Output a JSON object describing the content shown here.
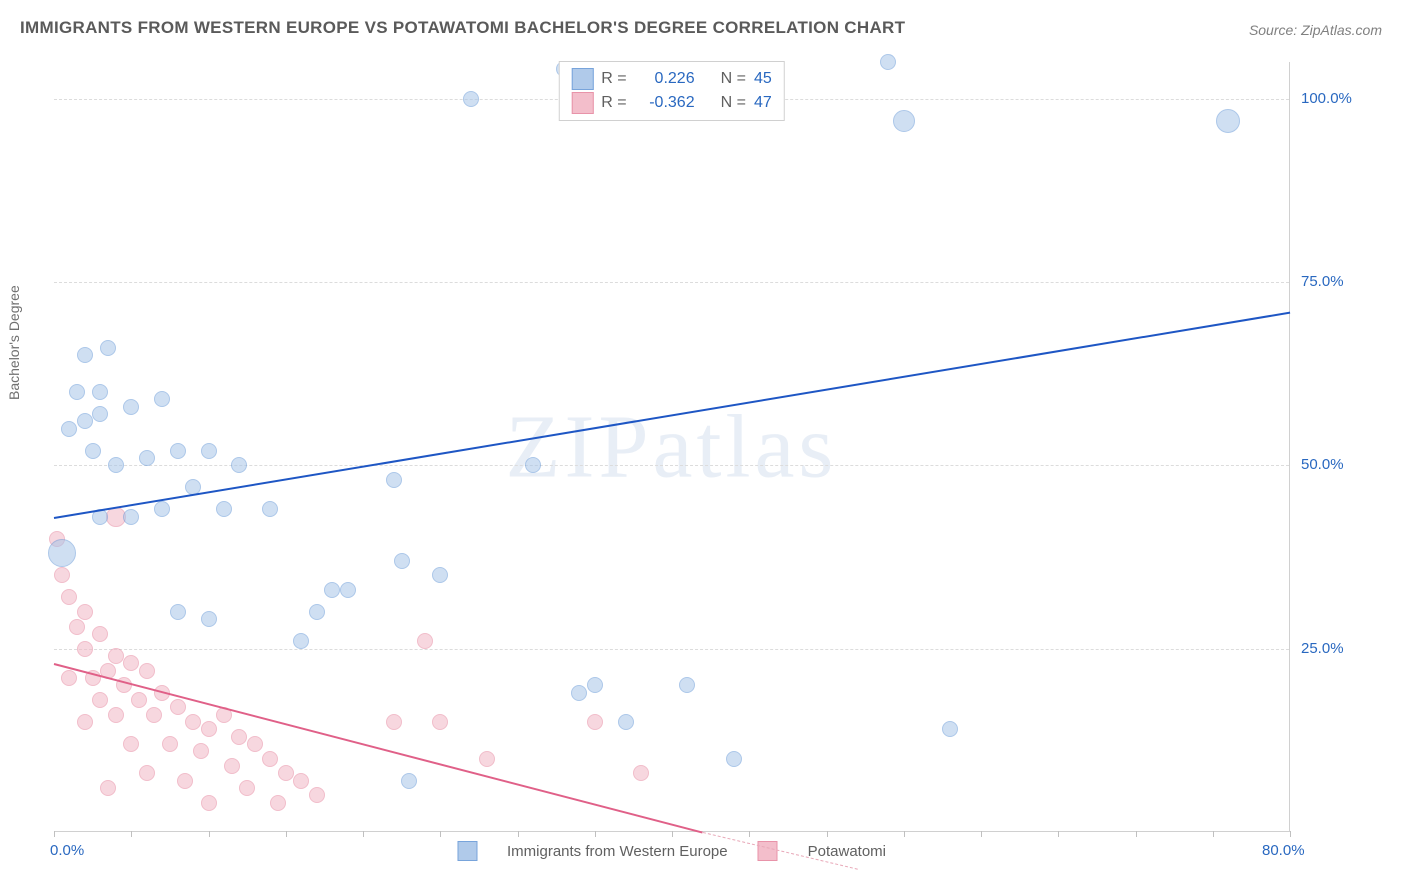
{
  "title": "IMMIGRANTS FROM WESTERN EUROPE VS POTAWATOMI BACHELOR'S DEGREE CORRELATION CHART",
  "source": "Source: ZipAtlas.com",
  "ylabel": "Bachelor's Degree",
  "watermark": "ZIPatlas",
  "chart": {
    "type": "scatter",
    "background_color": "#ffffff",
    "grid_color": "#dcdcdc",
    "border_color": "#d0d0d0",
    "xlim": [
      0,
      80
    ],
    "ylim": [
      0,
      105
    ],
    "xticks": [
      0,
      5,
      10,
      15,
      20,
      25,
      30,
      35,
      40,
      45,
      50,
      55,
      60,
      65,
      70,
      75,
      80
    ],
    "xtick_labels": {
      "0": "0.0%",
      "80": "80.0%"
    },
    "yticks": [
      25,
      50,
      75,
      100
    ],
    "ytick_labels": {
      "25": "25.0%",
      "50": "50.0%",
      "75": "75.0%",
      "100": "100.0%"
    },
    "label_fontsize": 15,
    "label_color": "#2968c0",
    "title_fontsize": 17,
    "title_color": "#5a5a5a"
  },
  "series": [
    {
      "name": "Immigrants from Western Europe",
      "color_fill": "#a8c5e8",
      "color_stroke": "#6a9bd8",
      "fill_opacity": 0.55,
      "marker_radius": 8,
      "R": "0.226",
      "N": "45",
      "trend": {
        "x1": 0,
        "y1": 43,
        "x2": 80,
        "y2": 71,
        "color": "#1e56c4",
        "width": 2
      },
      "points": [
        [
          0.5,
          38,
          14
        ],
        [
          2,
          65
        ],
        [
          3.5,
          66
        ],
        [
          1.5,
          60
        ],
        [
          3,
          60
        ],
        [
          1,
          55
        ],
        [
          2,
          56
        ],
        [
          3,
          57
        ],
        [
          5,
          58
        ],
        [
          7,
          59
        ],
        [
          2.5,
          52
        ],
        [
          4,
          50
        ],
        [
          6,
          51
        ],
        [
          8,
          52
        ],
        [
          10,
          52
        ],
        [
          12,
          50
        ],
        [
          9,
          47
        ],
        [
          11,
          44
        ],
        [
          7,
          44
        ],
        [
          5,
          43
        ],
        [
          3,
          43
        ],
        [
          14,
          44
        ],
        [
          22,
          48
        ],
        [
          22.5,
          37
        ],
        [
          18,
          33
        ],
        [
          19,
          33
        ],
        [
          17,
          30
        ],
        [
          8,
          30
        ],
        [
          10,
          29
        ],
        [
          25,
          35
        ],
        [
          31,
          50
        ],
        [
          33,
          104
        ],
        [
          33.5,
          104
        ],
        [
          27,
          100
        ],
        [
          35,
          20
        ],
        [
          41,
          20
        ],
        [
          54,
          105
        ],
        [
          55,
          97,
          11
        ],
        [
          58,
          14
        ],
        [
          76,
          97,
          12
        ],
        [
          44,
          10
        ],
        [
          23,
          7
        ],
        [
          34,
          19
        ],
        [
          37,
          15
        ],
        [
          16,
          26
        ]
      ]
    },
    {
      "name": "Potawatomi",
      "color_fill": "#f2b8c6",
      "color_stroke": "#e688a0",
      "fill_opacity": 0.55,
      "marker_radius": 8,
      "R": "-0.362",
      "N": "47",
      "trend": {
        "x1": 0,
        "y1": 23,
        "x2": 42,
        "y2": 0,
        "color": "#e06088",
        "width": 2
      },
      "trend_dash": {
        "x1": 42,
        "y1": 0,
        "x2": 52,
        "y2": -5,
        "color": "#e8a8b8",
        "width": 1.5
      },
      "points": [
        [
          0.2,
          40
        ],
        [
          0.5,
          35
        ],
        [
          1,
          32
        ],
        [
          2,
          30
        ],
        [
          1.5,
          28
        ],
        [
          3,
          27
        ],
        [
          2,
          25
        ],
        [
          4,
          24
        ],
        [
          5,
          23
        ],
        [
          3.5,
          22
        ],
        [
          6,
          22
        ],
        [
          1,
          21
        ],
        [
          2.5,
          21
        ],
        [
          4.5,
          20
        ],
        [
          7,
          19
        ],
        [
          5.5,
          18
        ],
        [
          3,
          18
        ],
        [
          8,
          17
        ],
        [
          6.5,
          16
        ],
        [
          4,
          16
        ],
        [
          2,
          15
        ],
        [
          9,
          15
        ],
        [
          11,
          16
        ],
        [
          10,
          14
        ],
        [
          12,
          13
        ],
        [
          7.5,
          12
        ],
        [
          5,
          12
        ],
        [
          13,
          12
        ],
        [
          9.5,
          11
        ],
        [
          14,
          10
        ],
        [
          11.5,
          9
        ],
        [
          6,
          8
        ],
        [
          15,
          8
        ],
        [
          8.5,
          7
        ],
        [
          16,
          7
        ],
        [
          3.5,
          6
        ],
        [
          12.5,
          6
        ],
        [
          17,
          5
        ],
        [
          10,
          4
        ],
        [
          14.5,
          4
        ],
        [
          22,
          15
        ],
        [
          24,
          26
        ],
        [
          25,
          15
        ],
        [
          28,
          10
        ],
        [
          35,
          15
        ],
        [
          38,
          8
        ],
        [
          4,
          43,
          10
        ]
      ]
    }
  ],
  "legend": {
    "label_R": "R =",
    "label_N": "N =",
    "bottom_items": [
      "Immigrants from Western Europe",
      "Potawatomi"
    ]
  }
}
